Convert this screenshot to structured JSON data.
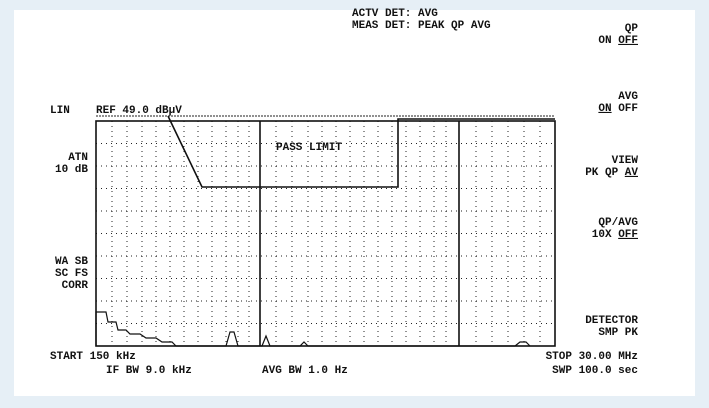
{
  "header": {
    "lines": [
      "ACTV DET: AVG",
      "MEAS DET: PEAK QP AVG"
    ]
  },
  "left": {
    "mode": "LIN",
    "ref": "REF 49.0 dBµV",
    "atn": [
      "ATN",
      "10 dB"
    ],
    "flags": [
      "WA SB",
      "SC FS",
      "CORR"
    ]
  },
  "plot": {
    "label": "PASS LIMIT"
  },
  "footer": {
    "start": "START 150 kHz",
    "if_bw": "IF BW 9.0 kHz",
    "avg_bw": "AVG BW 1.0 Hz",
    "stop": "STOP 30.00 MHz",
    "sweep": "SWP 100.0 sec"
  },
  "menu": [
    {
      "title": "QP",
      "options": [
        "ON",
        "OFF"
      ],
      "selected": 1
    },
    {
      "title": "AVG",
      "options": [
        "ON",
        "OFF"
      ],
      "selected": 0
    },
    {
      "title": "VIEW",
      "options": [
        "PK",
        "QP",
        "AV"
      ],
      "selected": 2
    },
    {
      "title": "QP/AVG",
      "options": [
        "10X",
        "OFF"
      ],
      "selected": 1
    },
    {
      "title": "DETECTOR",
      "options": [
        "SMP",
        "PK"
      ],
      "selected": null
    }
  ]
}
